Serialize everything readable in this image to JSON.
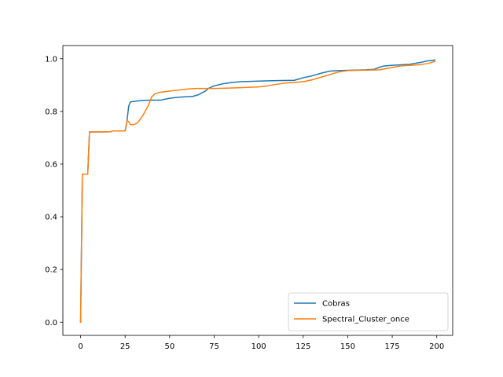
{
  "chart_data": {
    "type": "line",
    "title": "",
    "xlabel": "",
    "ylabel": "",
    "xlim": [
      -9.95,
      208.95
    ],
    "ylim": [
      -0.05,
      1.05
    ],
    "xticks": [
      0,
      25,
      50,
      75,
      100,
      125,
      150,
      175,
      200
    ],
    "yticks": [
      0.0,
      0.2,
      0.4,
      0.6,
      0.8,
      1.0
    ],
    "xtick_labels": [
      "0",
      "25",
      "50",
      "75",
      "100",
      "125",
      "150",
      "175",
      "200"
    ],
    "ytick_labels": [
      "0.0",
      "0.2",
      "0.4",
      "0.6",
      "0.8",
      "1.0"
    ],
    "grid": false,
    "legend_position": "lower-right",
    "series": [
      {
        "name": "Cobras",
        "color": "#1f77b4",
        "points": [
          [
            0,
            0.0
          ],
          [
            1,
            0.562
          ],
          [
            4,
            0.562
          ],
          [
            5,
            0.722
          ],
          [
            10,
            0.722
          ],
          [
            17,
            0.723
          ],
          [
            18,
            0.726
          ],
          [
            25,
            0.726
          ],
          [
            26,
            0.76
          ],
          [
            27,
            0.82
          ],
          [
            28,
            0.836
          ],
          [
            30,
            0.838
          ],
          [
            35,
            0.842
          ],
          [
            40,
            0.843
          ],
          [
            45,
            0.843
          ],
          [
            50,
            0.85
          ],
          [
            55,
            0.854
          ],
          [
            60,
            0.856
          ],
          [
            63,
            0.857
          ],
          [
            66,
            0.863
          ],
          [
            70,
            0.877
          ],
          [
            72,
            0.888
          ],
          [
            75,
            0.897
          ],
          [
            80,
            0.905
          ],
          [
            85,
            0.91
          ],
          [
            90,
            0.913
          ],
          [
            95,
            0.914
          ],
          [
            100,
            0.915
          ],
          [
            110,
            0.917
          ],
          [
            120,
            0.918
          ],
          [
            125,
            0.928
          ],
          [
            130,
            0.935
          ],
          [
            135,
            0.945
          ],
          [
            140,
            0.953
          ],
          [
            145,
            0.955
          ],
          [
            150,
            0.956
          ],
          [
            155,
            0.957
          ],
          [
            160,
            0.958
          ],
          [
            165,
            0.96
          ],
          [
            168,
            0.968
          ],
          [
            170,
            0.972
          ],
          [
            175,
            0.975
          ],
          [
            180,
            0.977
          ],
          [
            185,
            0.979
          ],
          [
            190,
            0.985
          ],
          [
            195,
            0.992
          ],
          [
            199,
            0.995
          ]
        ]
      },
      {
        "name": "Spectral_Cluster_once",
        "color": "#ff7f0e",
        "points": [
          [
            0,
            0.0
          ],
          [
            1,
            0.562
          ],
          [
            4,
            0.562
          ],
          [
            5,
            0.722
          ],
          [
            10,
            0.722
          ],
          [
            17,
            0.723
          ],
          [
            18,
            0.726
          ],
          [
            25,
            0.726
          ],
          [
            26,
            0.763
          ],
          [
            27,
            0.762
          ],
          [
            28,
            0.75
          ],
          [
            30,
            0.75
          ],
          [
            32,
            0.757
          ],
          [
            35,
            0.785
          ],
          [
            38,
            0.822
          ],
          [
            40,
            0.856
          ],
          [
            42,
            0.868
          ],
          [
            45,
            0.873
          ],
          [
            50,
            0.877
          ],
          [
            55,
            0.881
          ],
          [
            60,
            0.885
          ],
          [
            65,
            0.887
          ],
          [
            70,
            0.887
          ],
          [
            75,
            0.887
          ],
          [
            80,
            0.888
          ],
          [
            90,
            0.89
          ],
          [
            100,
            0.893
          ],
          [
            105,
            0.897
          ],
          [
            110,
            0.903
          ],
          [
            115,
            0.908
          ],
          [
            120,
            0.91
          ],
          [
            125,
            0.913
          ],
          [
            130,
            0.92
          ],
          [
            135,
            0.93
          ],
          [
            140,
            0.94
          ],
          [
            145,
            0.95
          ],
          [
            150,
            0.955
          ],
          [
            160,
            0.957
          ],
          [
            168,
            0.958
          ],
          [
            175,
            0.967
          ],
          [
            180,
            0.973
          ],
          [
            190,
            0.977
          ],
          [
            195,
            0.982
          ],
          [
            199,
            0.99
          ]
        ]
      }
    ]
  }
}
